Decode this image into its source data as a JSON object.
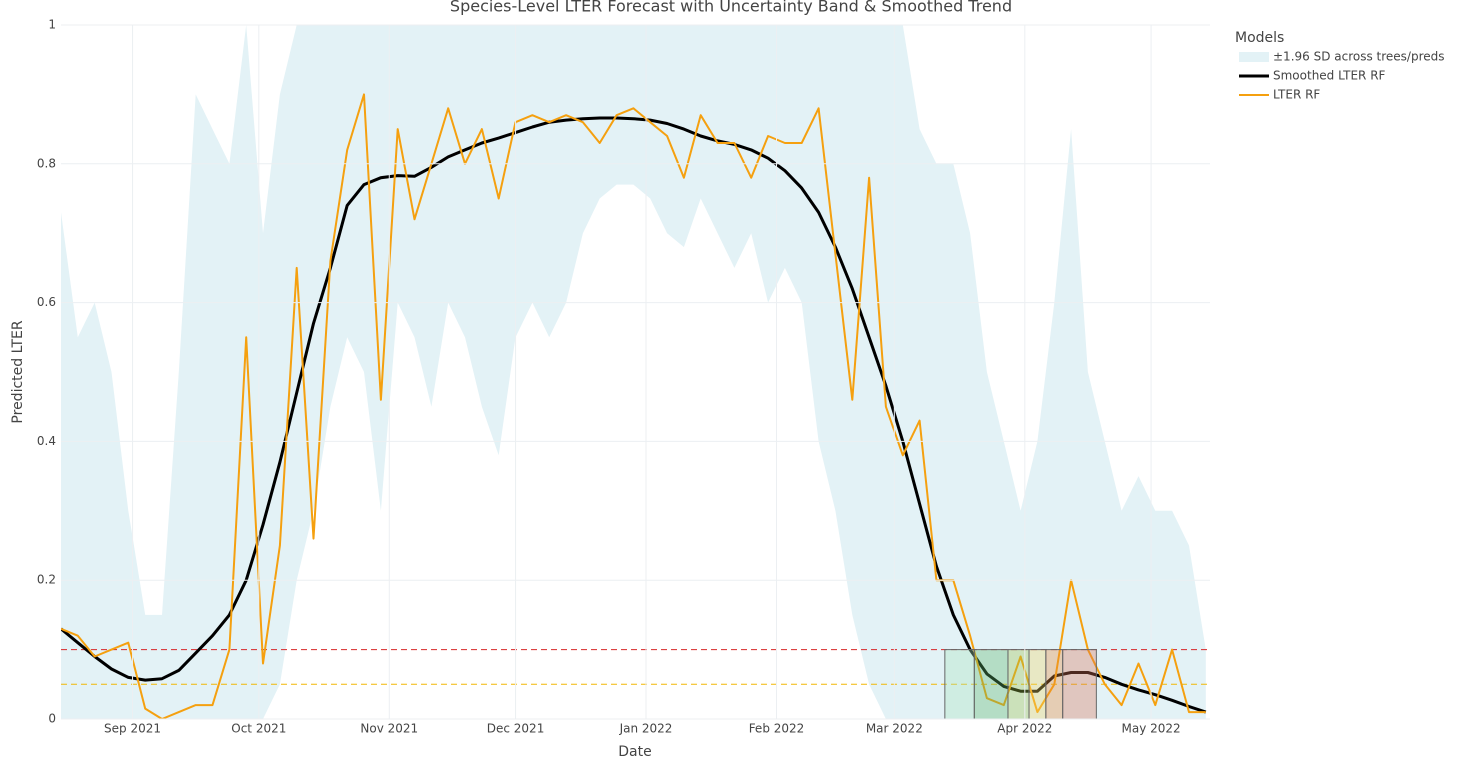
{
  "chart_data": {
    "type": "line",
    "title": "Species-Level LTER Forecast with Uncertainty Band & Smoothed Trend",
    "x_label": "Date",
    "y_label": "Predicted LTER",
    "legend_title": "Models",
    "legend": "top-right-outside",
    "grid": true,
    "xlim": [
      "2021-08-15",
      "2022-05-15"
    ],
    "xticks": [
      {
        "value": "2021-09-01",
        "label": "Sep 2021"
      },
      {
        "value": "2021-10-01",
        "label": "Oct 2021"
      },
      {
        "value": "2021-11-01",
        "label": "Nov 2021"
      },
      {
        "value": "2021-12-01",
        "label": "Dec 2021"
      },
      {
        "value": "2022-01-01",
        "label": "Jan 2022"
      },
      {
        "value": "2022-02-01",
        "label": "Feb 2022"
      },
      {
        "value": "2022-03-01",
        "label": "Mar 2022"
      },
      {
        "value": "2022-04-01",
        "label": "Apr 2022"
      },
      {
        "value": "2022-05-01",
        "label": "May 2022"
      }
    ],
    "ylim": [
      0,
      1
    ],
    "yticks": [
      0,
      0.2,
      0.4,
      0.6,
      0.8,
      1
    ],
    "x": [
      "2021-08-15",
      "2021-08-19",
      "2021-08-23",
      "2021-08-27",
      "2021-08-31",
      "2021-09-04",
      "2021-09-08",
      "2021-09-12",
      "2021-09-16",
      "2021-09-20",
      "2021-09-24",
      "2021-09-28",
      "2021-10-02",
      "2021-10-06",
      "2021-10-10",
      "2021-10-14",
      "2021-10-18",
      "2021-10-22",
      "2021-10-26",
      "2021-10-30",
      "2021-11-03",
      "2021-11-07",
      "2021-11-11",
      "2021-11-15",
      "2021-11-19",
      "2021-11-23",
      "2021-11-27",
      "2021-12-01",
      "2021-12-05",
      "2021-12-09",
      "2021-12-13",
      "2021-12-17",
      "2021-12-21",
      "2021-12-25",
      "2021-12-29",
      "2022-01-02",
      "2022-01-06",
      "2022-01-10",
      "2022-01-14",
      "2022-01-18",
      "2022-01-22",
      "2022-01-26",
      "2022-01-30",
      "2022-02-03",
      "2022-02-07",
      "2022-02-11",
      "2022-02-15",
      "2022-02-19",
      "2022-02-23",
      "2022-02-27",
      "2022-03-03",
      "2022-03-07",
      "2022-03-11",
      "2022-03-15",
      "2022-03-19",
      "2022-03-23",
      "2022-03-27",
      "2022-03-31",
      "2022-04-04",
      "2022-04-08",
      "2022-04-12",
      "2022-04-16",
      "2022-04-20",
      "2022-04-24",
      "2022-04-28",
      "2022-05-02",
      "2022-05-06",
      "2022-05-10",
      "2022-05-14"
    ],
    "series": [
      {
        "name": "±1.96 SD across trees/preds",
        "kind": "band",
        "color": "#e3f2f6",
        "upper": [
          0.73,
          0.55,
          0.6,
          0.5,
          0.3,
          0.15,
          0.15,
          0.5,
          0.9,
          0.85,
          0.8,
          1,
          0.7,
          0.9,
          1,
          1,
          1,
          1,
          1,
          1,
          1,
          1,
          1,
          1,
          1,
          1,
          1,
          1,
          1,
          1,
          1,
          1,
          1,
          1,
          1,
          1,
          1,
          1,
          1,
          1,
          1,
          1,
          1,
          1,
          1,
          1,
          1,
          1,
          1,
          1,
          1,
          0.85,
          0.8,
          0.8,
          0.7,
          0.5,
          0.4,
          0.3,
          0.4,
          0.6,
          0.85,
          0.5,
          0.4,
          0.3,
          0.35,
          0.3,
          0.3,
          0.25,
          0.1
        ],
        "lower": [
          0,
          0,
          0,
          0,
          0,
          0,
          0,
          0,
          0,
          0,
          0,
          0,
          0,
          0.05,
          0.2,
          0.3,
          0.45,
          0.55,
          0.5,
          0.3,
          0.6,
          0.55,
          0.45,
          0.6,
          0.55,
          0.45,
          0.38,
          0.55,
          0.6,
          0.55,
          0.6,
          0.7,
          0.75,
          0.77,
          0.77,
          0.75,
          0.7,
          0.68,
          0.75,
          0.7,
          0.65,
          0.7,
          0.6,
          0.65,
          0.6,
          0.4,
          0.3,
          0.15,
          0.05,
          0,
          0,
          0,
          0,
          0,
          0,
          0,
          0,
          0,
          0,
          0,
          0,
          0,
          0,
          0,
          0,
          0,
          0,
          0,
          0
        ]
      },
      {
        "name": "Smoothed LTER RF",
        "kind": "line",
        "color": "#000000",
        "width": 3,
        "values": [
          0.13,
          0.11,
          0.09,
          0.072,
          0.06,
          0.056,
          0.058,
          0.07,
          0.095,
          0.12,
          0.15,
          0.2,
          0.28,
          0.37,
          0.47,
          0.57,
          0.65,
          0.74,
          0.77,
          0.78,
          0.783,
          0.782,
          0.795,
          0.81,
          0.82,
          0.83,
          0.837,
          0.845,
          0.853,
          0.86,
          0.863,
          0.865,
          0.866,
          0.866,
          0.865,
          0.863,
          0.858,
          0.85,
          0.84,
          0.833,
          0.828,
          0.82,
          0.808,
          0.79,
          0.765,
          0.73,
          0.68,
          0.62,
          0.55,
          0.48,
          0.4,
          0.31,
          0.22,
          0.15,
          0.1,
          0.065,
          0.047,
          0.04,
          0.04,
          0.062,
          0.067,
          0.067,
          0.06,
          0.05,
          0.042,
          0.035,
          0.027,
          0.018,
          0.01
        ]
      },
      {
        "name": "LTER RF",
        "kind": "line",
        "color": "#f5a00f",
        "width": 2,
        "values": [
          0.13,
          0.12,
          0.09,
          0.1,
          0.11,
          0.015,
          0,
          0.01,
          0.02,
          0.02,
          0.1,
          0.55,
          0.08,
          0.25,
          0.65,
          0.26,
          0.66,
          0.82,
          0.9,
          0.46,
          0.85,
          0.72,
          0.8,
          0.88,
          0.8,
          0.85,
          0.75,
          0.86,
          0.87,
          0.86,
          0.87,
          0.86,
          0.83,
          0.87,
          0.88,
          0.86,
          0.84,
          0.78,
          0.87,
          0.83,
          0.83,
          0.78,
          0.84,
          0.83,
          0.83,
          0.88,
          0.67,
          0.46,
          0.78,
          0.45,
          0.38,
          0.43,
          0.2,
          0.2,
          0.12,
          0.03,
          0.02,
          0.09,
          0.01,
          0.05,
          0.2,
          0.1,
          0.05,
          0.02,
          0.08,
          0.02,
          0.1,
          0.01,
          0.01
        ]
      }
    ],
    "hlines": [
      {
        "y": 0.1,
        "color": "#d62728"
      },
      {
        "y": 0.05,
        "color": "#f2b705"
      }
    ],
    "shapes": [
      {
        "x0": "2022-03-13",
        "x1": "2022-03-20",
        "y0": 0,
        "y1": 0.1,
        "color": "#a8e6bd"
      },
      {
        "x0": "2022-03-20",
        "x1": "2022-03-28",
        "y0": 0,
        "y1": 0.1,
        "color": "#5cb86a"
      },
      {
        "x0": "2022-03-28",
        "x1": "2022-04-02",
        "y0": 0,
        "y1": 0.1,
        "color": "#9fc34a"
      },
      {
        "x0": "2022-04-02",
        "x1": "2022-04-06",
        "y0": 0,
        "y1": 0.1,
        "color": "#f2d766"
      },
      {
        "x0": "2022-04-06",
        "x1": "2022-04-10",
        "y0": 0,
        "y1": 0.1,
        "color": "#e8893a"
      },
      {
        "x0": "2022-04-10",
        "x1": "2022-04-18",
        "y0": 0,
        "y1": 0.1,
        "color": "#d9765a"
      }
    ]
  }
}
